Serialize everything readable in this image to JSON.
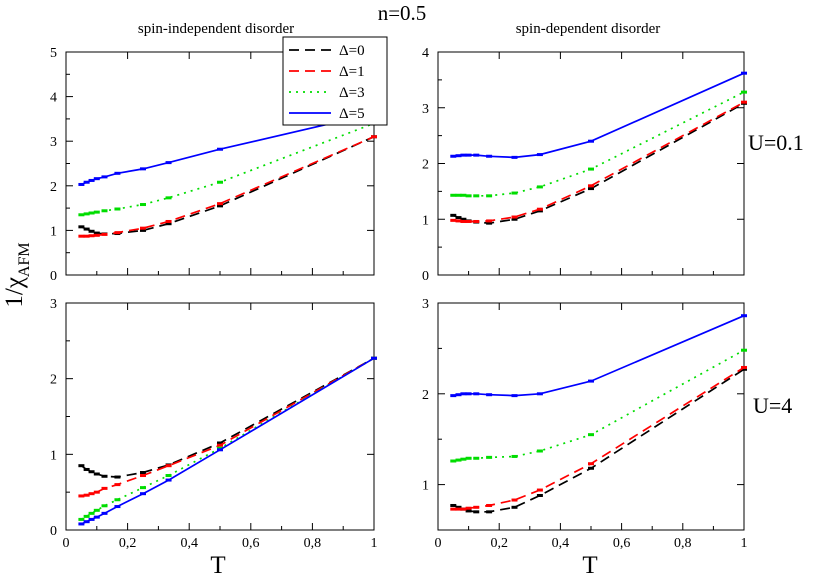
{
  "figure": {
    "title": "n=0.5",
    "column_titles": [
      "spin-independent disorder",
      "spin-dependent disorder"
    ],
    "row_labels": [
      "U=0.1",
      "U=4"
    ],
    "ylabel_main": "1/χ",
    "ylabel_sub": "AFM",
    "xlabel": "T"
  },
  "legend": [
    {
      "label": "Δ=0",
      "color": "#000000",
      "dash": "10,6"
    },
    {
      "label": "Δ=1",
      "color": "#ff0000",
      "dash": "10,6"
    },
    {
      "label": "Δ=3",
      "color": "#00dd00",
      "dash": "2,5"
    },
    {
      "label": "Δ=5",
      "color": "#0000ff",
      "dash": ""
    }
  ],
  "chart_data": [
    {
      "type": "line",
      "title": "spin-independent disorder",
      "row_label": "U=0.1",
      "xlabel": "T",
      "ylabel": "1/χAFM",
      "xlim": [
        0,
        1
      ],
      "ylim": [
        0,
        5
      ],
      "xticks": [
        "0",
        "0,2",
        "0,4",
        "0,6",
        "0,8",
        "1"
      ],
      "yticks": [
        "0",
        "1",
        "2",
        "3",
        "4",
        "5"
      ],
      "series": [
        {
          "name": "Δ=0",
          "x": [
            0.05,
            0.067,
            0.083,
            0.1,
            0.125,
            0.167,
            0.25,
            0.333,
            0.5,
            1.0
          ],
          "y": [
            1.08,
            1.03,
            0.98,
            0.94,
            0.92,
            0.93,
            1.0,
            1.15,
            1.55,
            3.1
          ]
        },
        {
          "name": "Δ=1",
          "x": [
            0.05,
            0.067,
            0.083,
            0.1,
            0.125,
            0.167,
            0.25,
            0.333,
            0.5,
            1.0
          ],
          "y": [
            0.87,
            0.87,
            0.88,
            0.89,
            0.91,
            0.95,
            1.05,
            1.2,
            1.6,
            3.1
          ]
        },
        {
          "name": "Δ=3",
          "x": [
            0.05,
            0.067,
            0.083,
            0.1,
            0.125,
            0.167,
            0.25,
            0.333,
            0.5,
            1.0
          ],
          "y": [
            1.35,
            1.37,
            1.39,
            1.41,
            1.44,
            1.48,
            1.58,
            1.73,
            2.08,
            3.4
          ]
        },
        {
          "name": "Δ=5",
          "x": [
            0.05,
            0.067,
            0.083,
            0.1,
            0.125,
            0.167,
            0.25,
            0.333,
            0.5,
            1.0
          ],
          "y": [
            2.03,
            2.08,
            2.12,
            2.16,
            2.2,
            2.28,
            2.38,
            2.52,
            2.82,
            3.62
          ]
        }
      ]
    },
    {
      "type": "line",
      "title": "spin-dependent disorder",
      "row_label": "U=0.1",
      "xlabel": "T",
      "ylabel": "1/χAFM",
      "xlim": [
        0,
        1
      ],
      "ylim": [
        0,
        4
      ],
      "xticks": [
        "0",
        "0,2",
        "0,4",
        "0,6",
        "0,8",
        "1"
      ],
      "yticks": [
        "0",
        "1",
        "2",
        "3",
        "4"
      ],
      "series": [
        {
          "name": "Δ=0",
          "x": [
            0.05,
            0.067,
            0.083,
            0.1,
            0.125,
            0.167,
            0.25,
            0.333,
            0.5,
            1.0
          ],
          "y": [
            1.07,
            1.03,
            1.0,
            0.97,
            0.95,
            0.93,
            1.0,
            1.15,
            1.55,
            3.08
          ]
        },
        {
          "name": "Δ=1",
          "x": [
            0.05,
            0.067,
            0.083,
            0.1,
            0.125,
            0.167,
            0.25,
            0.333,
            0.5,
            1.0
          ],
          "y": [
            0.98,
            0.97,
            0.96,
            0.96,
            0.96,
            0.97,
            1.04,
            1.18,
            1.6,
            3.1
          ]
        },
        {
          "name": "Δ=3",
          "x": [
            0.05,
            0.067,
            0.083,
            0.1,
            0.125,
            0.167,
            0.25,
            0.333,
            0.5,
            1.0
          ],
          "y": [
            1.43,
            1.43,
            1.43,
            1.42,
            1.42,
            1.42,
            1.47,
            1.58,
            1.9,
            3.28
          ]
        },
        {
          "name": "Δ=5",
          "x": [
            0.05,
            0.067,
            0.083,
            0.1,
            0.125,
            0.167,
            0.25,
            0.333,
            0.5,
            1.0
          ],
          "y": [
            2.13,
            2.14,
            2.15,
            2.15,
            2.15,
            2.13,
            2.11,
            2.16,
            2.4,
            3.62
          ]
        }
      ]
    },
    {
      "type": "line",
      "title": "spin-independent disorder",
      "row_label": "U=4",
      "xlabel": "T",
      "ylabel": "1/χAFM",
      "xlim": [
        0,
        1
      ],
      "ylim": [
        0,
        3
      ],
      "xticks": [
        "0",
        "0,2",
        "0,4",
        "0,6",
        "0,8",
        "1"
      ],
      "yticks": [
        "0",
        "1",
        "2",
        "3"
      ],
      "series": [
        {
          "name": "Δ=0",
          "x": [
            0.05,
            0.067,
            0.083,
            0.1,
            0.125,
            0.167,
            0.25,
            0.333,
            0.5,
            1.0
          ],
          "y": [
            0.85,
            0.8,
            0.77,
            0.74,
            0.71,
            0.7,
            0.76,
            0.86,
            1.15,
            2.27
          ]
        },
        {
          "name": "Δ=1",
          "x": [
            0.05,
            0.067,
            0.083,
            0.1,
            0.125,
            0.167,
            0.25,
            0.333,
            0.5,
            1.0
          ],
          "y": [
            0.45,
            0.46,
            0.48,
            0.5,
            0.55,
            0.6,
            0.72,
            0.85,
            1.12,
            2.27
          ]
        },
        {
          "name": "Δ=3",
          "x": [
            0.05,
            0.067,
            0.083,
            0.1,
            0.125,
            0.167,
            0.25,
            0.333,
            0.5,
            1.0
          ],
          "y": [
            0.14,
            0.18,
            0.22,
            0.26,
            0.32,
            0.4,
            0.56,
            0.72,
            1.08,
            2.27
          ]
        },
        {
          "name": "Δ=5",
          "x": [
            0.05,
            0.067,
            0.083,
            0.1,
            0.125,
            0.167,
            0.25,
            0.333,
            0.5,
            1.0
          ],
          "y": [
            0.08,
            0.11,
            0.14,
            0.17,
            0.22,
            0.31,
            0.48,
            0.66,
            1.06,
            2.27
          ]
        }
      ]
    },
    {
      "type": "line",
      "title": "spin-dependent disorder",
      "row_label": "U=4",
      "xlabel": "T",
      "ylabel": "1/χAFM",
      "xlim": [
        0,
        1
      ],
      "ylim": [
        0.5,
        3
      ],
      "xticks": [
        "0",
        "0,2",
        "0,4",
        "0,6",
        "0,8",
        "1"
      ],
      "yticks": [
        "1",
        "2",
        "3"
      ],
      "series": [
        {
          "name": "Δ=0",
          "x": [
            0.05,
            0.067,
            0.083,
            0.1,
            0.125,
            0.167,
            0.25,
            0.333,
            0.5,
            1.0
          ],
          "y": [
            0.77,
            0.75,
            0.73,
            0.71,
            0.7,
            0.7,
            0.75,
            0.88,
            1.18,
            2.27
          ]
        },
        {
          "name": "Δ=1",
          "x": [
            0.05,
            0.067,
            0.083,
            0.1,
            0.125,
            0.167,
            0.25,
            0.333,
            0.5,
            1.0
          ],
          "y": [
            0.73,
            0.73,
            0.73,
            0.74,
            0.75,
            0.77,
            0.83,
            0.94,
            1.23,
            2.29
          ]
        },
        {
          "name": "Δ=3",
          "x": [
            0.05,
            0.067,
            0.083,
            0.1,
            0.125,
            0.167,
            0.25,
            0.333,
            0.5,
            1.0
          ],
          "y": [
            1.26,
            1.27,
            1.28,
            1.29,
            1.29,
            1.3,
            1.31,
            1.37,
            1.55,
            2.48
          ]
        },
        {
          "name": "Δ=5",
          "x": [
            0.05,
            0.067,
            0.083,
            0.1,
            0.125,
            0.167,
            0.25,
            0.333,
            0.5,
            1.0
          ],
          "y": [
            1.98,
            1.99,
            2.0,
            2.0,
            2.0,
            1.99,
            1.98,
            2.0,
            2.14,
            2.86
          ]
        }
      ]
    }
  ]
}
